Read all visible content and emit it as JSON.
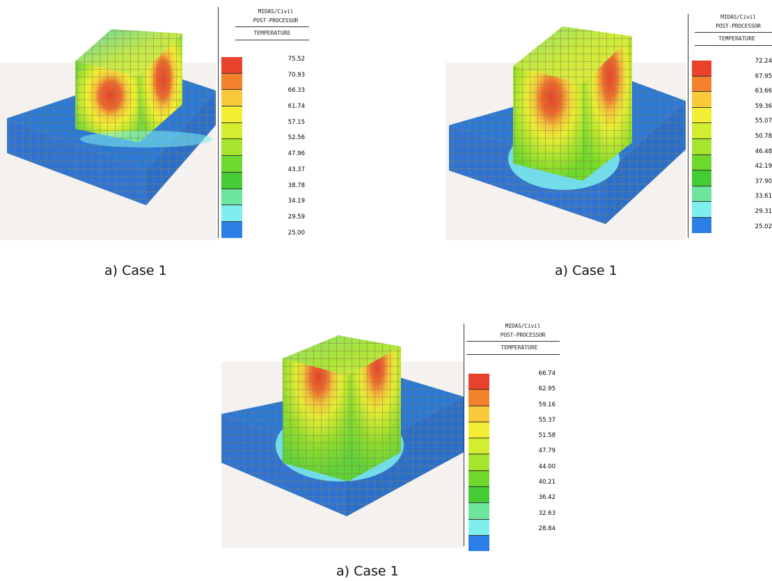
{
  "panels": [
    {
      "header_line1": "MIDAS/Civil",
      "header_line2": "POST-PROCESSOR",
      "result_label": "TEMPERATURE",
      "legend_values": [
        "75.52",
        "70.93",
        "66.33",
        "61.74",
        "57.15",
        "52.56",
        "47.96",
        "43.37",
        "38.78",
        "34.19",
        "29.59",
        "25.00"
      ],
      "caption": "a) Case 1"
    },
    {
      "header_line1": "MIDAS/Civil",
      "header_line2": "POST-PROCESSOR",
      "result_label": "TEMPERATURE",
      "legend_values": [
        "72.24",
        "67.95",
        "63.66",
        "59.36",
        "55.07",
        "50.78",
        "46.48",
        "42.19",
        "37.90",
        "33.61",
        "29.31",
        "25.02"
      ],
      "caption": "a) Case 1"
    },
    {
      "header_line1": "MIDAS/Civil",
      "header_line2": "POST-PROCESSOR",
      "result_label": "TEMPERATURE",
      "legend_values": [
        "66.74",
        "62.95",
        "59.16",
        "55.37",
        "51.58",
        "47.79",
        "44.00",
        "40.21",
        "36.42",
        "32.63",
        "28.84"
      ],
      "caption": "a) Case 1"
    }
  ],
  "legend_colors": [
    "#e8412c",
    "#f4812b",
    "#f9c93a",
    "#f2ee33",
    "#d3ee2e",
    "#a6e42d",
    "#6fd82c",
    "#45cc35",
    "#6ee59d",
    "#7eeeee",
    "#2d7fe8"
  ]
}
